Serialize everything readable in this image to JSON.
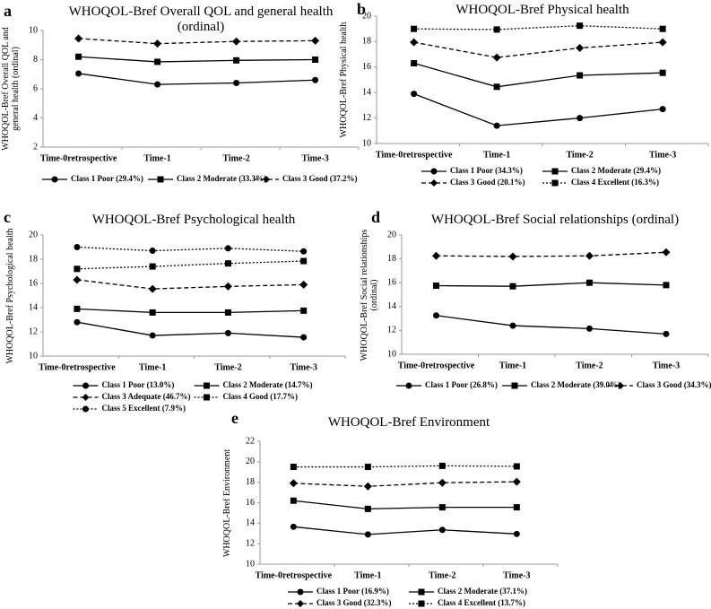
{
  "chart_data": [
    {
      "type": "line",
      "panel_label": "a",
      "title": "WHOQOL-Bref Overall QOL and general health (ordinal)",
      "ylabel": "WHOQOL-Bref Overall QOL and general health (ordinal)",
      "categories": [
        "Time-0retrospective",
        "Time-1",
        "Time-2",
        "Time-3"
      ],
      "ylim": [
        2,
        10
      ],
      "yticks": [
        2,
        4,
        6,
        8,
        10
      ],
      "series": [
        {
          "name": "Class 1 Poor (29.4%)",
          "color": "#000000",
          "dash": "solid",
          "marker": "circle",
          "values": [
            7.05,
            6.3,
            6.4,
            6.6
          ]
        },
        {
          "name": "Class 2 Moderate (33.3%)",
          "color": "#000000",
          "dash": "solid",
          "marker": "square",
          "values": [
            8.2,
            7.85,
            7.95,
            8.0
          ]
        },
        {
          "name": "Class 3 Good (37.2%)",
          "color": "#000000",
          "dash": "dashed",
          "marker": "diamond",
          "values": [
            9.45,
            9.1,
            9.25,
            9.3
          ]
        }
      ]
    },
    {
      "type": "line",
      "panel_label": "b",
      "title": "WHOQOL-Bref Physical health",
      "ylabel": "WHOQOL-Bref Physical health",
      "categories": [
        "Time-0retrospective",
        "Time-1",
        "Time-2",
        "Time-3"
      ],
      "ylim": [
        10,
        20
      ],
      "yticks": [
        10,
        12,
        14,
        16,
        18,
        20
      ],
      "series": [
        {
          "name": "Class 1 Poor (34.3%)",
          "color": "#000000",
          "dash": "solid",
          "marker": "circle",
          "values": [
            13.9,
            11.4,
            12.0,
            12.7
          ]
        },
        {
          "name": "Class 2 Moderate (29.4%)",
          "color": "#000000",
          "dash": "solid",
          "marker": "square",
          "values": [
            16.3,
            14.45,
            15.35,
            15.55
          ]
        },
        {
          "name": "Class 3 Good (20.1%)",
          "color": "#000000",
          "dash": "dashed",
          "marker": "diamond",
          "values": [
            17.95,
            16.75,
            17.5,
            17.95
          ]
        },
        {
          "name": "Class 4 Excellent (16.3%)",
          "color": "#000000",
          "dash": "dotted",
          "marker": "square",
          "values": [
            19.0,
            18.95,
            19.25,
            19.0
          ]
        }
      ]
    },
    {
      "type": "line",
      "panel_label": "c",
      "title": "WHOQOL-Bref Psychological health",
      "ylabel": "WHOQOL-Bref Psychological health",
      "categories": [
        "Time-0retrospective",
        "Time-1",
        "Time-2",
        "Time-3"
      ],
      "ylim": [
        10,
        20
      ],
      "yticks": [
        10,
        12,
        14,
        16,
        18,
        20
      ],
      "series": [
        {
          "name": "Class 1 Poor (13.0%)",
          "color": "#000000",
          "dash": "solid",
          "marker": "circle",
          "values": [
            12.8,
            11.7,
            11.9,
            11.55
          ]
        },
        {
          "name": "Class 2 Moderate (14.7%)",
          "color": "#000000",
          "dash": "solid",
          "marker": "square",
          "values": [
            13.9,
            13.6,
            13.6,
            13.75
          ]
        },
        {
          "name": "Class 3 Adequate (46.7%)",
          "color": "#000000",
          "dash": "dashed",
          "marker": "diamond",
          "values": [
            16.3,
            15.55,
            15.75,
            15.9
          ]
        },
        {
          "name": "Class 4 Good (17.7%)",
          "color": "#000000",
          "dash": "dotted",
          "marker": "square",
          "values": [
            17.2,
            17.4,
            17.65,
            17.85
          ]
        },
        {
          "name": "Class 5 Excellent (7.9%)",
          "color": "#000000",
          "dash": "dotted",
          "marker": "circle",
          "values": [
            19.0,
            18.7,
            18.9,
            18.65
          ]
        }
      ]
    },
    {
      "type": "line",
      "panel_label": "d",
      "title": "WHOQOL-Bref Social relationships (ordinal)",
      "ylabel": "WHOQOL-Bref Social relationships (ordinal)",
      "categories": [
        "Time-0retrospective",
        "Time-1",
        "Time-2",
        "Time-3"
      ],
      "ylim": [
        10,
        20
      ],
      "yticks": [
        10,
        12,
        14,
        16,
        18,
        20
      ],
      "series": [
        {
          "name": "Class 1 Poor (26.8%)",
          "color": "#000000",
          "dash": "solid",
          "marker": "circle",
          "values": [
            13.25,
            12.4,
            12.15,
            11.7
          ]
        },
        {
          "name": "Class 2 Moderate (39.0%)",
          "color": "#000000",
          "dash": "solid",
          "marker": "square",
          "values": [
            15.75,
            15.7,
            16.0,
            15.8
          ]
        },
        {
          "name": "Class 3 Good (34.3%)",
          "color": "#000000",
          "dash": "dashed",
          "marker": "diamond",
          "values": [
            18.25,
            18.2,
            18.25,
            18.55
          ]
        }
      ]
    },
    {
      "type": "line",
      "panel_label": "e",
      "title": "WHOQOL-Bref Environment",
      "ylabel": "WHOQOL-Bref Environment",
      "categories": [
        "Time-0retrospective",
        "Time-1",
        "Time-2",
        "Time-3"
      ],
      "ylim": [
        10,
        22
      ],
      "yticks": [
        10,
        12,
        14,
        16,
        18,
        20,
        22
      ],
      "series": [
        {
          "name": "Class 1 Poor (16.9%)",
          "color": "#000000",
          "dash": "solid",
          "marker": "circle",
          "values": [
            13.65,
            12.9,
            13.35,
            12.95
          ]
        },
        {
          "name": "Class 2 Moderate (37.1%)",
          "color": "#000000",
          "dash": "solid",
          "marker": "square",
          "values": [
            16.2,
            15.4,
            15.55,
            15.55
          ]
        },
        {
          "name": "Class 3 Good (32.3%)",
          "color": "#000000",
          "dash": "dashed",
          "marker": "diamond",
          "values": [
            17.9,
            17.6,
            17.95,
            18.05
          ]
        },
        {
          "name": "Class 4 Excellent (13.7%)",
          "color": "#000000",
          "dash": "dotted",
          "marker": "square",
          "values": [
            19.5,
            19.5,
            19.6,
            19.55
          ]
        }
      ]
    }
  ]
}
